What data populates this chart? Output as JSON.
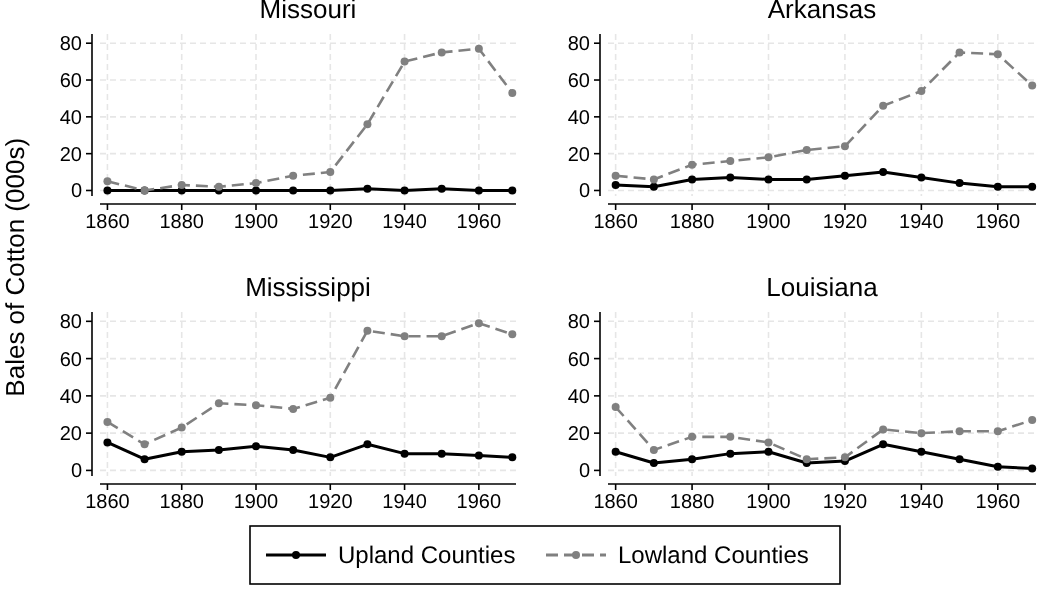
{
  "chart_data": [
    {
      "type": "line",
      "title": "Missouri",
      "ylabel": "Bales of Cotton (000s)",
      "x": [
        1860,
        1870,
        1880,
        1890,
        1900,
        1910,
        1920,
        1930,
        1940,
        1950,
        1960,
        1969
      ],
      "xlim": [
        1858,
        1970
      ],
      "ylim": [
        -3,
        85
      ],
      "xticks": [
        1860,
        1880,
        1900,
        1920,
        1940,
        1960
      ],
      "yticks": [
        0,
        20,
        40,
        60,
        80
      ],
      "grid": true,
      "marker": "circle",
      "legend": "bottom",
      "series": [
        {
          "name": "Upland Counties",
          "color": "#000000",
          "line_style": "solid",
          "values": [
            0,
            0,
            0,
            0,
            0,
            0,
            0,
            1,
            0,
            1,
            0,
            0
          ]
        },
        {
          "name": "Lowland Counties",
          "color": "#808080",
          "line_style": "dashed",
          "values": [
            5,
            0,
            3,
            2,
            4,
            8,
            10,
            36,
            70,
            75,
            77,
            53
          ]
        }
      ]
    },
    {
      "type": "line",
      "title": "Arkansas",
      "x": [
        1860,
        1870,
        1880,
        1890,
        1900,
        1910,
        1920,
        1930,
        1940,
        1950,
        1960,
        1969
      ],
      "xlim": [
        1858,
        1970
      ],
      "ylim": [
        -3,
        85
      ],
      "xticks": [
        1860,
        1880,
        1900,
        1920,
        1940,
        1960
      ],
      "yticks": [
        0,
        20,
        40,
        60,
        80
      ],
      "grid": true,
      "marker": "circle",
      "series": [
        {
          "color": "#000000",
          "line_style": "solid",
          "values": [
            3,
            2,
            6,
            7,
            6,
            6,
            8,
            10,
            7,
            4,
            2,
            2
          ]
        },
        {
          "color": "#808080",
          "line_style": "dashed",
          "values": [
            8,
            6,
            14,
            16,
            18,
            22,
            24,
            46,
            54,
            75,
            74,
            57
          ]
        }
      ]
    },
    {
      "type": "line",
      "title": "Mississippi",
      "x": [
        1860,
        1870,
        1880,
        1890,
        1900,
        1910,
        1920,
        1930,
        1940,
        1950,
        1960,
        1969
      ],
      "xlim": [
        1858,
        1970
      ],
      "ylim": [
        -3,
        85
      ],
      "xticks": [
        1860,
        1880,
        1900,
        1920,
        1940,
        1960
      ],
      "yticks": [
        0,
        20,
        40,
        60,
        80
      ],
      "grid": true,
      "marker": "circle",
      "series": [
        {
          "color": "#000000",
          "line_style": "solid",
          "values": [
            15,
            6,
            10,
            11,
            13,
            11,
            7,
            14,
            9,
            9,
            8,
            7
          ]
        },
        {
          "color": "#808080",
          "line_style": "dashed",
          "values": [
            26,
            14,
            23,
            36,
            35,
            33,
            39,
            75,
            72,
            72,
            79,
            73
          ]
        }
      ]
    },
    {
      "type": "line",
      "title": "Louisiana",
      "x": [
        1860,
        1870,
        1880,
        1890,
        1900,
        1910,
        1920,
        1930,
        1940,
        1950,
        1960,
        1969
      ],
      "xlim": [
        1858,
        1970
      ],
      "ylim": [
        -3,
        85
      ],
      "xticks": [
        1860,
        1880,
        1900,
        1920,
        1940,
        1960
      ],
      "yticks": [
        0,
        20,
        40,
        60,
        80
      ],
      "grid": true,
      "marker": "circle",
      "series": [
        {
          "color": "#000000",
          "line_style": "solid",
          "values": [
            10,
            4,
            6,
            9,
            10,
            4,
            5,
            14,
            10,
            6,
            2,
            1
          ]
        },
        {
          "color": "#808080",
          "line_style": "dashed",
          "values": [
            34,
            11,
            18,
            18,
            15,
            6,
            7,
            22,
            20,
            21,
            21,
            27
          ]
        }
      ]
    }
  ]
}
